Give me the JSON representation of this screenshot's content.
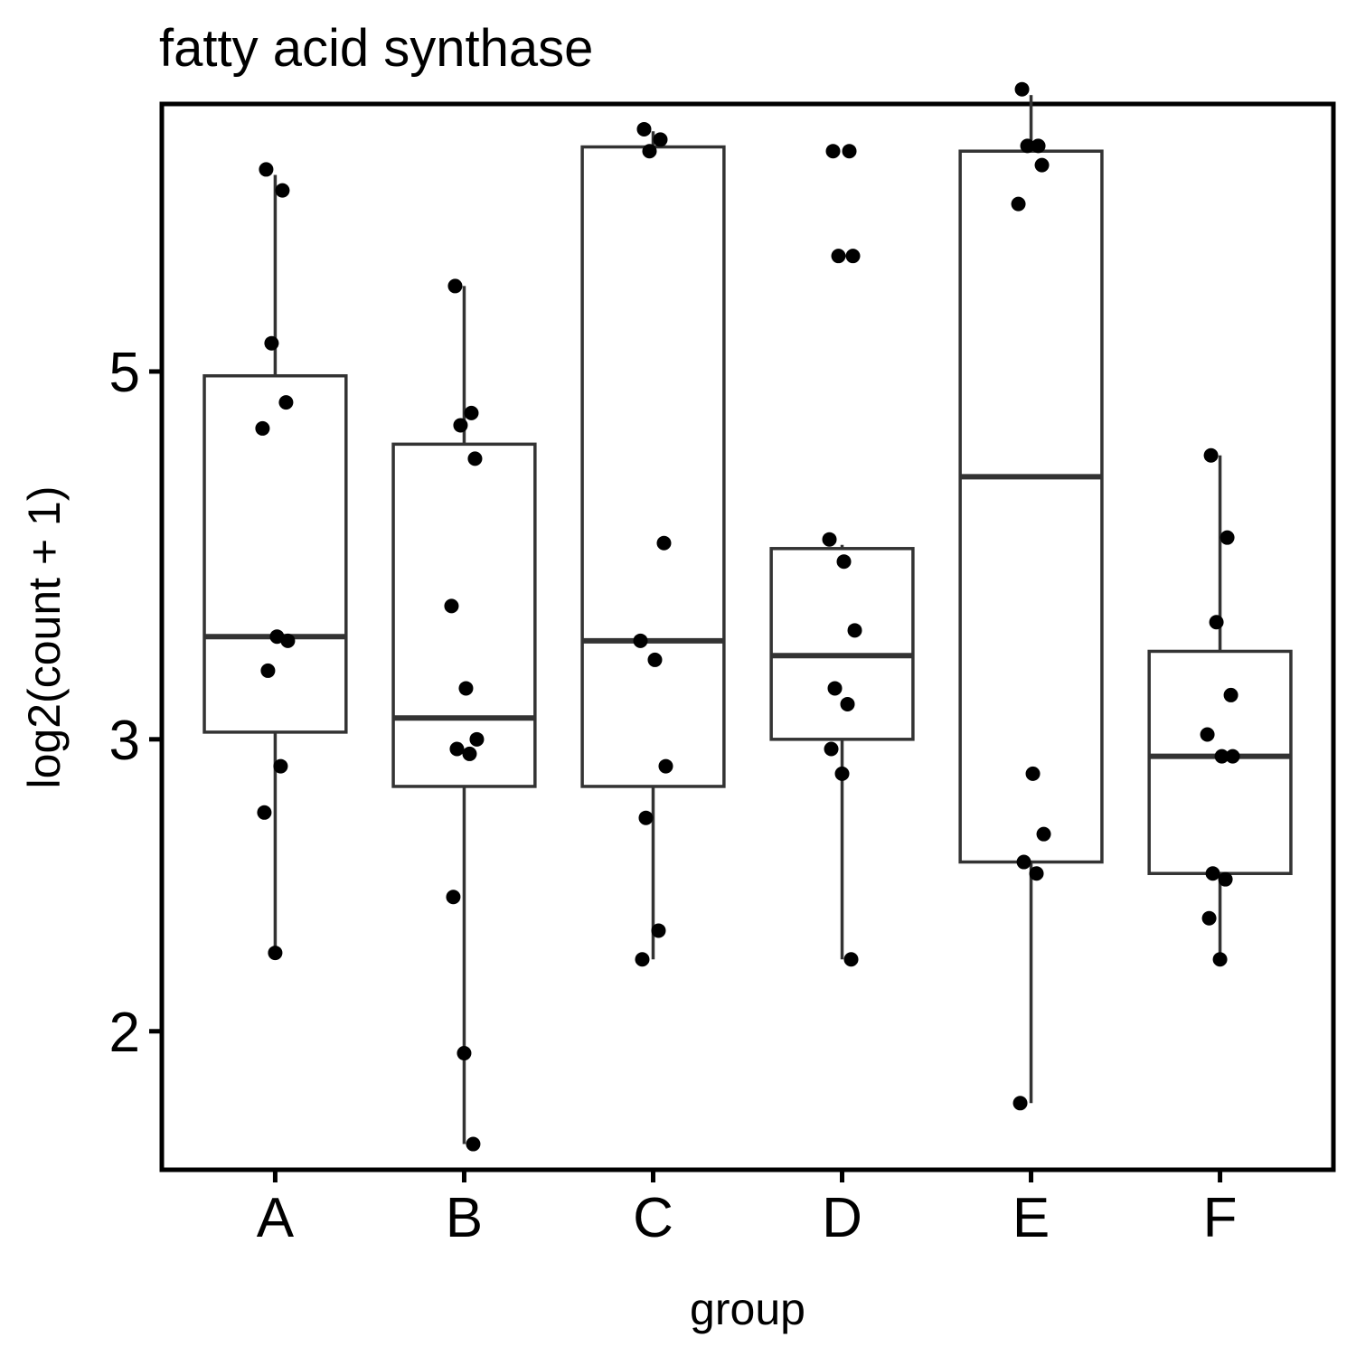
{
  "chart_data": {
    "type": "boxplot",
    "title": "fatty acid synthase",
    "xlabel": "group",
    "ylabel": "log2(count + 1)",
    "y_scale": "log2",
    "ylim": [
      1.65,
      7.25
    ],
    "yticks": [
      {
        "value": 2,
        "label": "2"
      },
      {
        "value": 3,
        "label": "3"
      },
      {
        "value": 5,
        "label": "5"
      }
    ],
    "categories": [
      "A",
      "B",
      "C",
      "D",
      "E",
      "F"
    ],
    "colors": {
      "box": "#333333",
      "point": "#000000",
      "frame": "#000000"
    },
    "boxes": [
      {
        "group": "A",
        "whisker_low": 2.23,
        "q1": 3.03,
        "median": 3.46,
        "q3": 4.97,
        "whisker_high": 6.57
      },
      {
        "group": "B",
        "whisker_low": 1.71,
        "q1": 2.81,
        "median": 3.09,
        "q3": 4.52,
        "whisker_high": 5.63
      },
      {
        "group": "C",
        "whisker_low": 2.21,
        "q1": 2.81,
        "median": 3.44,
        "q3": 6.83,
        "whisker_high": 6.98
      },
      {
        "group": "D",
        "whisker_low": 2.21,
        "q1": 3.0,
        "median": 3.37,
        "q3": 3.91,
        "whisker_high": 3.93
      },
      {
        "group": "E",
        "whisker_low": 1.81,
        "q1": 2.53,
        "median": 4.32,
        "q3": 6.79,
        "whisker_high": 7.34
      },
      {
        "group": "F",
        "whisker_low": 2.21,
        "q1": 2.49,
        "median": 2.93,
        "q3": 3.39,
        "whisker_high": 4.45
      }
    ],
    "points": [
      {
        "group": "A",
        "values": [
          6.62,
          6.43,
          5.2,
          4.79,
          4.62,
          3.46,
          3.44,
          3.3,
          2.89,
          2.71,
          2.23
        ]
      },
      {
        "group": "B",
        "values": [
          5.63,
          4.72,
          4.64,
          4.43,
          3.61,
          3.22,
          3.0,
          2.96,
          2.94,
          2.41,
          1.94,
          1.71
        ]
      },
      {
        "group": "C",
        "values": [
          7.0,
          6.9,
          6.79,
          3.94,
          3.44,
          3.35,
          2.89,
          2.69,
          2.3,
          2.21
        ]
      },
      {
        "group": "D",
        "values": [
          6.79,
          6.79,
          5.87,
          5.87,
          3.96,
          3.84,
          3.49,
          3.22,
          3.15,
          2.96,
          2.86,
          2.21
        ]
      },
      {
        "group": "E",
        "values": [
          7.4,
          6.84,
          6.84,
          6.66,
          6.31,
          2.86,
          2.63,
          2.53,
          2.49,
          1.81
        ]
      },
      {
        "group": "F",
        "values": [
          4.45,
          3.97,
          3.53,
          3.19,
          3.02,
          2.93,
          2.93,
          2.49,
          2.47,
          2.34,
          2.21
        ]
      }
    ]
  }
}
